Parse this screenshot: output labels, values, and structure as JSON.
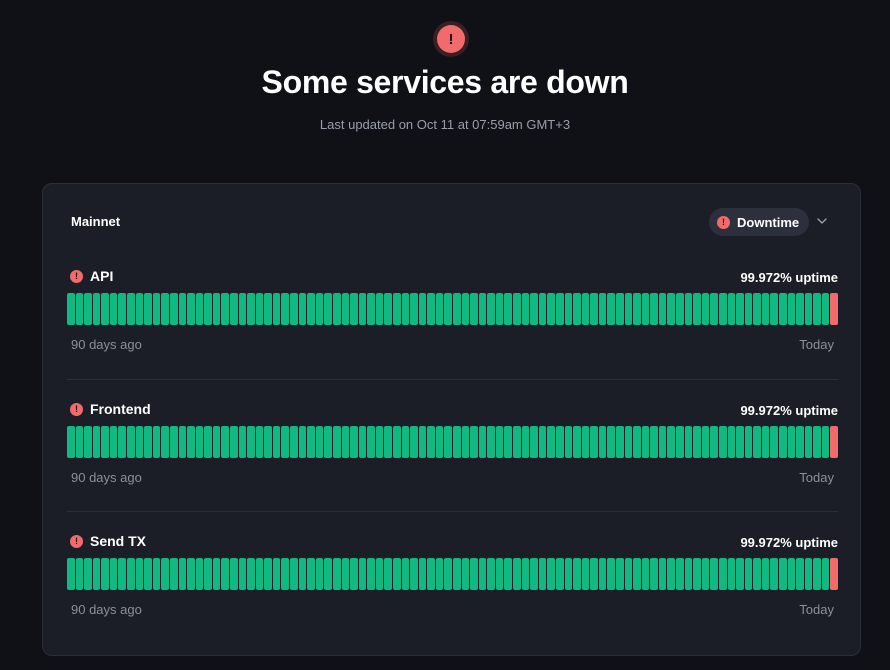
{
  "header": {
    "icon": "alert-icon",
    "title": "Some services are down",
    "subtitle": "Last updated on Oct 11 at 07:59am GMT+3"
  },
  "panel": {
    "title": "Mainnet",
    "status_label": "Downtime",
    "status_icon": "alert-icon",
    "expand_icon": "chevron-down-icon"
  },
  "services": [
    {
      "name": "API",
      "uptime": "99.972% uptime",
      "start_label": "90 days ago",
      "end_label": "Today",
      "days_total": 90,
      "days_down": [
        90
      ]
    },
    {
      "name": "Frontend",
      "uptime": "99.972% uptime",
      "start_label": "90 days ago",
      "end_label": "Today",
      "days_total": 90,
      "days_down": [
        90
      ]
    },
    {
      "name": "Send TX",
      "uptime": "99.972% uptime",
      "start_label": "90 days ago",
      "end_label": "Today",
      "days_total": 90,
      "days_down": [
        90
      ]
    }
  ],
  "colors": {
    "background": "#0f1117",
    "panel": "#1b1e27",
    "operational": "#10b981",
    "outage": "#f26b6b",
    "muted_text": "#8b8f9c"
  }
}
